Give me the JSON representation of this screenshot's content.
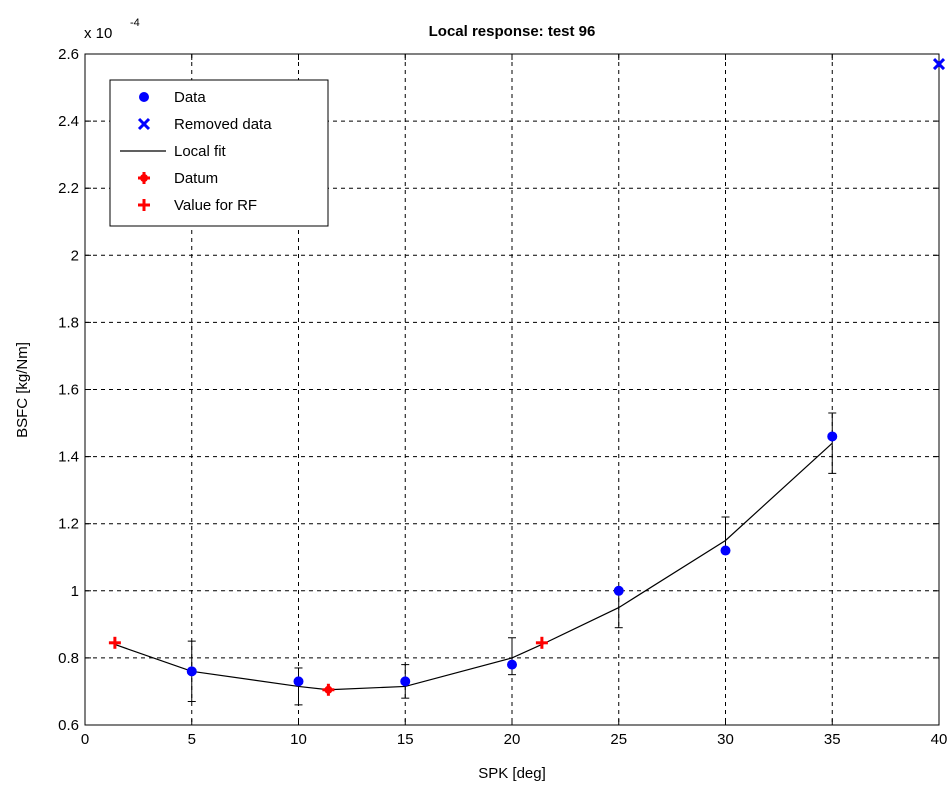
{
  "chart_data": {
    "type": "scatter",
    "title": "Local response:  test 96",
    "xlabel": "SPK [deg]",
    "ylabel": "BSFC [kg/Nm]",
    "exponent_base": "x 10",
    "exponent_power": "-4",
    "xlim": [
      0,
      40
    ],
    "ylim": [
      0.6,
      2.6
    ],
    "xticks": [
      "0",
      "5",
      "10",
      "15",
      "20",
      "25",
      "30",
      "35",
      "40"
    ],
    "yticks": [
      "0.6",
      "0.8",
      "1",
      "1.2",
      "1.4",
      "1.6",
      "1.8",
      "2",
      "2.2",
      "2.4",
      "2.6"
    ],
    "grid": true,
    "legend_position": "top-left",
    "legend": [
      "Data",
      "Removed data",
      "Local fit",
      "Datum",
      "Value for RF"
    ],
    "series": [
      {
        "name": "Data",
        "color": "#0000ff",
        "x": [
          5,
          10,
          15,
          20,
          25,
          30,
          35
        ],
        "y": [
          0.76,
          0.73,
          0.73,
          0.78,
          1.0,
          1.12,
          1.46
        ],
        "err_low": [
          0.67,
          0.66,
          0.68,
          0.75,
          0.89,
          1.12,
          1.35
        ],
        "err_high": [
          0.85,
          0.77,
          0.78,
          0.86,
          1.0,
          1.22,
          1.53
        ]
      },
      {
        "name": "Removed data",
        "color": "#0000ff",
        "x": [
          40
        ],
        "y": [
          2.57
        ]
      },
      {
        "name": "Local fit",
        "color": "#000000",
        "x": [
          1.4,
          5,
          10,
          11.4,
          15,
          20,
          21.4,
          25,
          30,
          35
        ],
        "y": [
          0.84,
          0.76,
          0.715,
          0.705,
          0.715,
          0.8,
          0.84,
          0.95,
          1.15,
          1.44
        ]
      },
      {
        "name": "Datum",
        "color": "#ff0000",
        "x": [
          11.4
        ],
        "y": [
          0.705
        ]
      },
      {
        "name": "Value for RF",
        "color": "#ff0000",
        "x": [
          1.4,
          21.4
        ],
        "y": [
          0.845,
          0.845
        ]
      }
    ]
  }
}
